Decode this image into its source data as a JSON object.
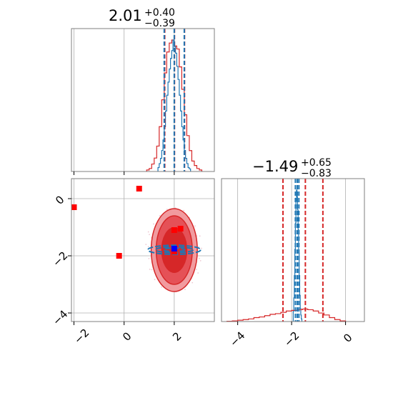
{
  "colors": {
    "series_a": "#d62728",
    "series_b": "#1f77b4",
    "markers_a": "#ff0000",
    "markers_b": "#0000ff"
  },
  "titles": {
    "param1": {
      "value": "2.01",
      "plus": "+0.40",
      "minus": "−0.39"
    },
    "param2": {
      "value": "−1.49",
      "plus": "+0.65",
      "minus": "−0.83"
    }
  },
  "ticks": {
    "x1": [
      "−2",
      "0",
      "2"
    ],
    "y2": [
      "0",
      "−2",
      "−4"
    ],
    "x2": [
      "−4",
      "−2",
      "0"
    ]
  },
  "chart_data": [
    {
      "type": "histogram",
      "panel": "marginal-param1",
      "xlim": [
        -2.1,
        3.6
      ],
      "grid": true,
      "series": [
        {
          "color": "#d62728",
          "bins": [
            0.9,
            1.0,
            1.1,
            1.2,
            1.3,
            1.4,
            1.5,
            1.6,
            1.7,
            1.8,
            1.9,
            2.0,
            2.1,
            2.2,
            2.3,
            2.4,
            2.5,
            2.6,
            2.7,
            2.8,
            2.9,
            3.0,
            3.1
          ],
          "heights": [
            0.01,
            0.02,
            0.05,
            0.09,
            0.17,
            0.3,
            0.48,
            0.66,
            0.8,
            0.86,
            0.88,
            0.84,
            0.82,
            0.7,
            0.55,
            0.38,
            0.24,
            0.14,
            0.07,
            0.04,
            0.02,
            0.01
          ],
          "quantiles": [
            1.62,
            2.01,
            2.41
          ]
        },
        {
          "color": "#1f77b4",
          "bins": [
            1.35,
            1.4,
            1.45,
            1.5,
            1.55,
            1.6,
            1.65,
            1.7,
            1.75,
            1.8,
            1.85,
            1.9,
            1.95,
            2.0,
            2.05,
            2.1,
            2.15,
            2.2,
            2.25,
            2.3,
            2.35,
            2.4,
            2.45,
            2.5,
            2.55,
            2.6,
            2.65
          ],
          "heights": [
            0.03,
            0.06,
            0.1,
            0.16,
            0.24,
            0.34,
            0.46,
            0.58,
            0.68,
            0.78,
            0.86,
            0.92,
            1.0,
            0.95,
            0.9,
            0.8,
            0.7,
            0.58,
            0.46,
            0.34,
            0.24,
            0.16,
            0.1,
            0.06,
            0.03,
            0.02
          ],
          "quantiles": [
            1.6,
            2.0,
            2.4
          ]
        }
      ]
    },
    {
      "type": "histogram",
      "panel": "marginal-param2",
      "xlim": [
        -4.6,
        0.7
      ],
      "grid": true,
      "series": [
        {
          "color": "#d62728",
          "bins": [
            -4.4,
            -4.2,
            -4.0,
            -3.8,
            -3.6,
            -3.4,
            -3.2,
            -3.0,
            -2.8,
            -2.6,
            -2.4,
            -2.2,
            -2.0,
            -1.8,
            -1.6,
            -1.4,
            -1.2,
            -1.0,
            -0.8,
            -0.6,
            -0.4,
            -0.2,
            0.0
          ],
          "heights": [
            0.002,
            0.005,
            0.01,
            0.015,
            0.02,
            0.03,
            0.035,
            0.045,
            0.055,
            0.06,
            0.07,
            0.08,
            0.085,
            0.09,
            0.095,
            0.09,
            0.08,
            0.065,
            0.05,
            0.03,
            0.015,
            0.005
          ],
          "quantiles": [
            -2.32,
            -1.49,
            -0.84
          ]
        },
        {
          "color": "#1f77b4",
          "bins": [
            -1.94,
            -1.92,
            -1.9,
            -1.88,
            -1.86,
            -1.84,
            -1.82,
            -1.8,
            -1.78,
            -1.76,
            -1.74,
            -1.72,
            -1.7,
            -1.68,
            -1.66,
            -1.64,
            -1.62
          ],
          "heights": [
            0.08,
            0.18,
            0.35,
            0.55,
            0.75,
            0.92,
            1.0,
            0.95,
            0.85,
            0.7,
            0.52,
            0.35,
            0.2,
            0.1,
            0.05,
            0.02
          ],
          "quantiles": [
            -1.86,
            -1.79,
            -1.73
          ]
        }
      ]
    },
    {
      "type": "scatter",
      "panel": "joint",
      "xlim": [
        -2.1,
        3.6
      ],
      "ylim": [
        -4.3,
        0.7
      ],
      "grid": true,
      "series": [
        {
          "color": "#d62728",
          "center": [
            2.0,
            -1.8
          ],
          "contour_radii": [
            [
              0.92,
              1.45
            ],
            [
              0.72,
              1.2
            ],
            [
              0.5,
              0.78
            ]
          ],
          "points": [
            [
              0.6,
              0.35
            ],
            [
              -2.0,
              -0.3
            ],
            [
              -0.2,
              -2.0
            ],
            [
              2.0,
              -1.1
            ],
            [
              2.25,
              -1.05
            ],
            [
              2.0,
              -1.85
            ]
          ]
        },
        {
          "color": "#1f77b4",
          "center": [
            2.0,
            -1.79
          ],
          "contour_radii": [
            [
              1.05,
              0.16
            ],
            [
              0.75,
              0.1
            ],
            [
              0.42,
              0.06
            ]
          ],
          "points": [
            [
              2.0,
              -1.75
            ]
          ]
        }
      ]
    }
  ]
}
